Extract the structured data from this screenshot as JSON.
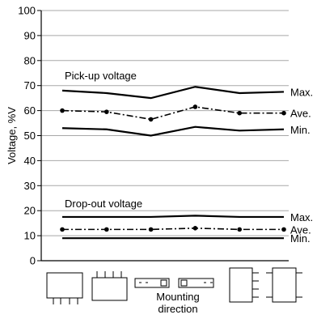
{
  "chart_data": {
    "type": "line",
    "ylabel": "Voltage, %V",
    "ylim": [
      0,
      100
    ],
    "yticks": [
      0,
      10,
      20,
      30,
      40,
      50,
      60,
      70,
      80,
      90,
      100
    ],
    "grid": {
      "y": true,
      "x": false
    },
    "x": [
      1,
      2,
      3,
      4,
      5,
      6
    ],
    "xlabel_line1": "Mounting",
    "xlabel_line2": "direction",
    "x_icons": [
      "relay-upright-front-icon",
      "relay-upright-back-icon",
      "relay-flat-left-icon",
      "relay-flat-right-icon",
      "relay-side-pins-right-icon",
      "relay-side-pins-both-icon"
    ],
    "groups": [
      {
        "name": "Pick-up voltage",
        "series": [
          {
            "name": "Max.",
            "style": "solid",
            "values": [
              68,
              67,
              65,
              69.5,
              67,
              67.5
            ]
          },
          {
            "name": "Ave.",
            "style": "dash-dot-markers",
            "values": [
              60,
              59.5,
              56.5,
              61.5,
              59,
              59
            ]
          },
          {
            "name": "Min.",
            "style": "solid",
            "values": [
              53,
              52.5,
              50,
              53.5,
              52,
              52.5
            ]
          }
        ]
      },
      {
        "name": "Drop-out voltage",
        "series": [
          {
            "name": "Max.",
            "style": "solid",
            "values": [
              17.5,
              17.5,
              17.5,
              18,
              17.5,
              17.5
            ]
          },
          {
            "name": "Ave.",
            "style": "dash-dot-markers",
            "values": [
              12.5,
              12.5,
              12.5,
              13,
              12.5,
              12.5
            ]
          },
          {
            "name": "Min.",
            "style": "solid",
            "values": [
              9,
              9,
              9,
              9,
              9,
              9
            ]
          }
        ]
      }
    ]
  }
}
